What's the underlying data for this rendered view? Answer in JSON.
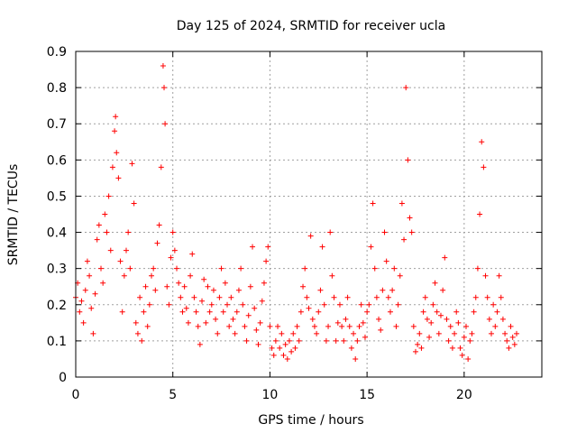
{
  "chart_data": {
    "type": "scatter",
    "title": "Day 125 of 2024, SRMTID for receiver ucla",
    "xlabel": "GPS time / hours",
    "ylabel": "SRMTID / TECUs",
    "xlim": [
      0,
      24
    ],
    "ylim": [
      0,
      0.9
    ],
    "xticks": [
      0,
      5,
      10,
      15,
      20
    ],
    "yticks": [
      0,
      0.1,
      0.2,
      0.3,
      0.4,
      0.5,
      0.6,
      0.7,
      0.8,
      0.9
    ],
    "xtick_labels": [
      "0",
      "5",
      "10",
      "15",
      "20"
    ],
    "ytick_labels": [
      "0",
      "0.1",
      "0.2",
      "0.3",
      "0.4",
      "0.5",
      "0.6",
      "0.7",
      "0.8",
      "0.9"
    ],
    "grid": true,
    "marker": "+",
    "color": "#ff0000",
    "series": [
      {
        "name": "SRMTID",
        "x": [
          0.0,
          0.1,
          0.2,
          0.3,
          0.4,
          0.5,
          0.6,
          0.7,
          0.8,
          0.9,
          1.0,
          1.1,
          1.2,
          1.3,
          1.4,
          1.5,
          1.6,
          1.7,
          1.8,
          1.9,
          2.0,
          2.05,
          2.1,
          2.2,
          2.3,
          2.4,
          2.5,
          2.6,
          2.7,
          2.8,
          2.9,
          3.0,
          3.1,
          3.2,
          3.3,
          3.4,
          3.5,
          3.6,
          3.7,
          3.8,
          3.9,
          4.0,
          4.1,
          4.2,
          4.3,
          4.4,
          4.5,
          4.55,
          4.6,
          4.7,
          4.8,
          4.9,
          5.0,
          5.1,
          5.2,
          5.3,
          5.4,
          5.5,
          5.6,
          5.7,
          5.8,
          5.9,
          6.0,
          6.1,
          6.2,
          6.3,
          6.4,
          6.5,
          6.6,
          6.7,
          6.8,
          6.9,
          7.0,
          7.1,
          7.2,
          7.3,
          7.4,
          7.5,
          7.6,
          7.7,
          7.8,
          7.9,
          8.0,
          8.1,
          8.2,
          8.3,
          8.4,
          8.5,
          8.6,
          8.7,
          8.8,
          8.9,
          9.0,
          9.1,
          9.2,
          9.3,
          9.4,
          9.5,
          9.6,
          9.7,
          9.8,
          9.9,
          10.0,
          10.1,
          10.2,
          10.3,
          10.4,
          10.5,
          10.6,
          10.7,
          10.8,
          10.9,
          11.0,
          11.1,
          11.2,
          11.3,
          11.4,
          11.5,
          11.6,
          11.7,
          11.8,
          11.9,
          12.0,
          12.1,
          12.2,
          12.3,
          12.4,
          12.5,
          12.6,
          12.7,
          12.8,
          12.9,
          13.0,
          13.1,
          13.2,
          13.3,
          13.4,
          13.5,
          13.6,
          13.7,
          13.8,
          13.9,
          14.0,
          14.1,
          14.2,
          14.3,
          14.4,
          14.5,
          14.6,
          14.7,
          14.8,
          14.9,
          15.0,
          15.1,
          15.2,
          15.3,
          15.4,
          15.5,
          15.6,
          15.7,
          15.8,
          15.9,
          16.0,
          16.1,
          16.2,
          16.3,
          16.4,
          16.5,
          16.6,
          16.7,
          16.8,
          16.9,
          17.0,
          17.1,
          17.2,
          17.3,
          17.4,
          17.5,
          17.6,
          17.7,
          17.8,
          17.9,
          18.0,
          18.1,
          18.2,
          18.3,
          18.4,
          18.5,
          18.6,
          18.7,
          18.8,
          18.9,
          19.0,
          19.1,
          19.2,
          19.3,
          19.4,
          19.5,
          19.6,
          19.7,
          19.8,
          19.9,
          20.0,
          20.1,
          20.2,
          20.3,
          20.4,
          20.5,
          20.6,
          20.7,
          20.8,
          20.9,
          21.0,
          21.1,
          21.2,
          21.3,
          21.4,
          21.5,
          21.6,
          21.7,
          21.8,
          21.9,
          22.0,
          22.1,
          22.2,
          22.3,
          22.4,
          22.5,
          22.6,
          22.7
        ],
        "y": [
          0.22,
          0.26,
          0.18,
          0.21,
          0.15,
          0.24,
          0.32,
          0.28,
          0.19,
          0.12,
          0.23,
          0.38,
          0.42,
          0.3,
          0.26,
          0.45,
          0.4,
          0.5,
          0.35,
          0.58,
          0.68,
          0.72,
          0.62,
          0.55,
          0.32,
          0.18,
          0.28,
          0.35,
          0.4,
          0.3,
          0.59,
          0.48,
          0.15,
          0.12,
          0.22,
          0.1,
          0.18,
          0.25,
          0.14,
          0.2,
          0.28,
          0.3,
          0.24,
          0.37,
          0.42,
          0.58,
          0.86,
          0.8,
          0.7,
          0.25,
          0.2,
          0.33,
          0.4,
          0.35,
          0.3,
          0.26,
          0.22,
          0.18,
          0.25,
          0.19,
          0.15,
          0.28,
          0.34,
          0.22,
          0.18,
          0.14,
          0.09,
          0.21,
          0.27,
          0.15,
          0.25,
          0.18,
          0.2,
          0.24,
          0.16,
          0.12,
          0.22,
          0.3,
          0.18,
          0.26,
          0.2,
          0.14,
          0.22,
          0.16,
          0.12,
          0.18,
          0.24,
          0.3,
          0.2,
          0.14,
          0.1,
          0.17,
          0.25,
          0.36,
          0.19,
          0.13,
          0.09,
          0.15,
          0.21,
          0.26,
          0.32,
          0.36,
          0.14,
          0.08,
          0.06,
          0.1,
          0.14,
          0.08,
          0.12,
          0.06,
          0.09,
          0.05,
          0.1,
          0.07,
          0.12,
          0.08,
          0.14,
          0.1,
          0.18,
          0.25,
          0.3,
          0.22,
          0.19,
          0.39,
          0.16,
          0.14,
          0.12,
          0.18,
          0.24,
          0.36,
          0.2,
          0.1,
          0.14,
          0.4,
          0.28,
          0.22,
          0.1,
          0.15,
          0.2,
          0.14,
          0.1,
          0.16,
          0.22,
          0.14,
          0.08,
          0.12,
          0.05,
          0.1,
          0.14,
          0.2,
          0.15,
          0.11,
          0.18,
          0.2,
          0.36,
          0.48,
          0.3,
          0.22,
          0.16,
          0.13,
          0.24,
          0.4,
          0.32,
          0.22,
          0.18,
          0.24,
          0.3,
          0.14,
          0.2,
          0.28,
          0.48,
          0.38,
          0.8,
          0.6,
          0.44,
          0.4,
          0.14,
          0.07,
          0.09,
          0.12,
          0.08,
          0.18,
          0.22,
          0.16,
          0.11,
          0.15,
          0.2,
          0.26,
          0.18,
          0.12,
          0.17,
          0.24,
          0.33,
          0.16,
          0.1,
          0.14,
          0.08,
          0.12,
          0.18,
          0.15,
          0.08,
          0.06,
          0.11,
          0.14,
          0.05,
          0.1,
          0.12,
          0.18,
          0.22,
          0.3,
          0.45,
          0.65,
          0.58,
          0.28,
          0.22,
          0.16,
          0.12,
          0.2,
          0.14,
          0.18,
          0.28,
          0.22,
          0.16,
          0.12,
          0.1,
          0.08,
          0.14,
          0.11,
          0.09,
          0.12
        ]
      }
    ]
  }
}
